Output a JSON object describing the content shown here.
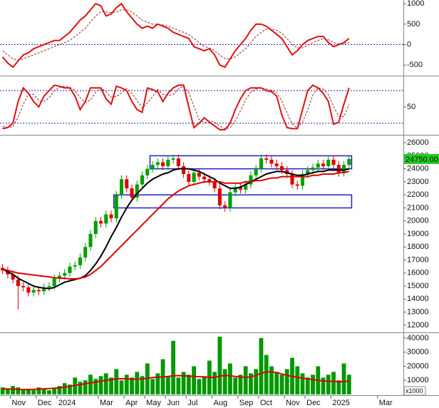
{
  "chart_data": [
    {
      "type": "line",
      "ylim": [
        -740,
        1090
      ],
      "yticks": [
        -500,
        0,
        500,
        1000
      ],
      "reference_line": 0,
      "series": [
        {
          "color": "#e01010",
          "values": [
            -300,
            -450,
            -550,
            -400,
            -250,
            -200,
            -100,
            -50,
            0,
            50,
            100,
            100,
            200,
            300,
            450,
            600,
            700,
            850,
            1000,
            950,
            700,
            750,
            900,
            1000,
            800,
            650,
            500,
            400,
            450,
            400,
            500,
            450,
            400,
            300,
            250,
            200,
            150,
            -50,
            -100,
            -150,
            -100,
            -250,
            -500,
            -550,
            -350,
            -150,
            0,
            150,
            350,
            500,
            500,
            450,
            350,
            250,
            150,
            -50,
            -250,
            -150,
            0,
            100,
            150,
            200,
            200,
            50,
            -50,
            0,
            50,
            150,
            null,
            null,
            null,
            null,
            null,
            null,
            null,
            null,
            null,
            null
          ]
        },
        {
          "color": "#a02828",
          "dashed": true,
          "values": [
            -150,
            -250,
            -350,
            -380,
            -350,
            -300,
            -250,
            -200,
            -150,
            -100,
            -50,
            0,
            50,
            100,
            200,
            300,
            400,
            550,
            700,
            800,
            800,
            780,
            800,
            850,
            850,
            800,
            700,
            600,
            550,
            500,
            500,
            480,
            450,
            400,
            350,
            300,
            250,
            150,
            50,
            -50,
            -80,
            -150,
            -250,
            -350,
            -350,
            -300,
            -200,
            -100,
            50,
            200,
            300,
            380,
            380,
            350,
            280,
            150,
            0,
            -80,
            -80,
            -20,
            50,
            100,
            150,
            120,
            50,
            20,
            20,
            60,
            null,
            null,
            null,
            null,
            null,
            null,
            null,
            null,
            null,
            null
          ]
        }
      ]
    },
    {
      "type": "line",
      "ylim": [
        0,
        105
      ],
      "yticks": [
        50
      ],
      "levels": [
        20,
        80
      ],
      "series": [
        {
          "color": "#e01010",
          "values": [
            10,
            12,
            20,
            60,
            85,
            75,
            60,
            50,
            70,
            80,
            90,
            88,
            85,
            85,
            70,
            45,
            60,
            85,
            85,
            85,
            65,
            55,
            88,
            85,
            80,
            60,
            45,
            40,
            85,
            82,
            78,
            60,
            75,
            85,
            90,
            90,
            50,
            12,
            20,
            30,
            22,
            15,
            8,
            8,
            20,
            45,
            65,
            80,
            85,
            85,
            85,
            80,
            78,
            70,
            35,
            12,
            10,
            10,
            45,
            80,
            90,
            85,
            75,
            60,
            18,
            22,
            55,
            85,
            null,
            null,
            null,
            null,
            null,
            null,
            null,
            null,
            null,
            null
          ]
        },
        {
          "color": "#a02828",
          "dashed": true,
          "values": [
            14,
            12,
            14,
            31,
            55,
            73,
            73,
            62,
            60,
            67,
            80,
            86,
            88,
            86,
            80,
            67,
            58,
            63,
            77,
            85,
            78,
            68,
            69,
            76,
            84,
            75,
            62,
            48,
            57,
            69,
            82,
            73,
            71,
            73,
            83,
            88,
            77,
            51,
            27,
            21,
            24,
            22,
            15,
            10,
            12,
            24,
            43,
            63,
            77,
            83,
            85,
            83,
            81,
            76,
            61,
            39,
            19,
            11,
            22,
            45,
            72,
            85,
            83,
            73,
            51,
            33,
            32,
            54,
            null,
            null,
            null,
            null,
            null,
            null,
            null,
            null,
            null,
            null
          ]
        }
      ]
    },
    {
      "type": "candlestick",
      "ylim": [
        11500,
        26500
      ],
      "yticks": [
        12000,
        13000,
        14000,
        15000,
        16000,
        17000,
        18000,
        19000,
        20000,
        21000,
        22000,
        23000,
        24000,
        25000,
        26000
      ],
      "up_color": "#00a000",
      "down_color": "#e00000",
      "zone_color": "#1f1fd0",
      "open": [
        16400,
        16200,
        15900,
        15500,
        15000,
        14900,
        14500,
        14700,
        14600,
        14900,
        15000,
        15600,
        15800,
        16000,
        16500,
        16600,
        17200,
        18000,
        19000,
        20000,
        19800,
        20500,
        20200,
        22000,
        23200,
        22500,
        21800,
        22800,
        23500,
        24000,
        24300,
        24500,
        24200,
        24700,
        24800,
        24200,
        23600,
        23000,
        23700,
        23400,
        23200,
        23000,
        22500,
        21200,
        21000,
        22200,
        22600,
        22400,
        22800,
        23500,
        24000,
        24800,
        24700,
        24400,
        24200,
        23900,
        23600,
        22800,
        22700,
        23600,
        23900,
        24100,
        24400,
        24200,
        24700,
        24300,
        23700,
        24300,
        null,
        null,
        null,
        null,
        null,
        null,
        null,
        null,
        null,
        null
      ],
      "high": [
        16700,
        16500,
        16200,
        15800,
        15300,
        15200,
        15000,
        15000,
        15200,
        15300,
        15900,
        16100,
        16300,
        16800,
        16900,
        17500,
        18300,
        19300,
        20300,
        20300,
        20800,
        20800,
        22300,
        23500,
        23500,
        22800,
        23100,
        23800,
        24300,
        24600,
        24800,
        24800,
        25000,
        25100,
        25100,
        24500,
        23900,
        24000,
        24000,
        23700,
        23500,
        23300,
        22800,
        21500,
        22500,
        22900,
        22900,
        23100,
        23800,
        24300,
        25100,
        25100,
        25000,
        24700,
        24500,
        24200,
        23900,
        23100,
        23900,
        24200,
        24400,
        24700,
        24700,
        25000,
        25000,
        24600,
        24600,
        25050,
        null,
        null,
        null,
        null,
        null,
        null,
        null,
        null,
        null,
        null
      ],
      "low": [
        15900,
        15600,
        15200,
        13200,
        14600,
        14200,
        14200,
        14300,
        14300,
        14600,
        14700,
        15300,
        15500,
        15700,
        16200,
        16300,
        16900,
        17700,
        18700,
        19500,
        19500,
        19900,
        19900,
        21700,
        22200,
        21500,
        21500,
        22500,
        23200,
        23700,
        24000,
        23900,
        23900,
        24400,
        23900,
        23300,
        22700,
        22700,
        23100,
        22900,
        22700,
        22200,
        20900,
        20700,
        20700,
        21900,
        22100,
        22100,
        22500,
        23200,
        23700,
        24400,
        24100,
        23900,
        23600,
        23300,
        22500,
        22400,
        22400,
        23300,
        23600,
        23800,
        23900,
        23900,
        24000,
        23400,
        23400,
        24000,
        null,
        null,
        null,
        null,
        null,
        null,
        null,
        null,
        null,
        null
      ],
      "close": [
        16200,
        15900,
        15500,
        15000,
        14900,
        14500,
        14700,
        14600,
        14900,
        15000,
        15600,
        15800,
        16000,
        16500,
        16600,
        17200,
        18000,
        19000,
        20000,
        19800,
        20500,
        20200,
        22000,
        23200,
        22500,
        21800,
        22800,
        23500,
        24000,
        24300,
        24500,
        24200,
        24700,
        24800,
        24200,
        23600,
        23000,
        23700,
        23400,
        23200,
        23000,
        22500,
        21200,
        21000,
        22200,
        22600,
        22400,
        22800,
        23500,
        24000,
        24800,
        24700,
        24400,
        24200,
        23900,
        23600,
        22800,
        22700,
        23600,
        23900,
        24100,
        24400,
        24200,
        24700,
        24300,
        23700,
        24300,
        24750,
        null,
        null,
        null,
        null,
        null,
        null,
        null,
        null,
        null,
        null
      ],
      "last_value_label": "24750.00",
      "zones": [
        {
          "start": 22,
          "end": 67,
          "low": 21000,
          "high": 22000
        },
        {
          "start": 29,
          "end": 67,
          "low": 24000,
          "high": 25000
        }
      ],
      "series": [
        {
          "color": "#000000",
          "values": [
            16300,
            16100,
            15900,
            15600,
            15400,
            15200,
            15000,
            14900,
            14850,
            14800,
            14900,
            15100,
            15300,
            15400,
            15500,
            15600,
            15800,
            16200,
            16700,
            17300,
            18000,
            18800,
            19500,
            20300,
            21000,
            21600,
            22100,
            22500,
            22900,
            23200,
            23400,
            23600,
            23700,
            23900,
            24000,
            24000,
            24000,
            23900,
            23800,
            23600,
            23400,
            23200,
            22900,
            22700,
            22500,
            22500,
            22600,
            22800,
            23000,
            23200,
            23400,
            23600,
            23700,
            23800,
            23800,
            23700,
            23600,
            23500,
            23500,
            23600,
            23700,
            23800,
            23800,
            23900,
            23900,
            23900,
            23900,
            24000,
            null,
            null,
            null,
            null,
            null,
            null,
            null,
            null,
            null,
            null
          ]
        },
        {
          "color": "#e00000",
          "values": [
            16300,
            16200,
            16100,
            16000,
            15950,
            15900,
            15850,
            15800,
            15750,
            15700,
            15650,
            15600,
            15600,
            15550,
            15550,
            15600,
            15700,
            15900,
            16200,
            16500,
            16900,
            17300,
            17700,
            18100,
            18500,
            18900,
            19300,
            19700,
            20100,
            20500,
            20900,
            21300,
            21700,
            22000,
            22300,
            22500,
            22700,
            22800,
            22900,
            23000,
            23000,
            23000,
            23000,
            22900,
            22900,
            22900,
            22900,
            23000,
            23000,
            23100,
            23100,
            23200,
            23300,
            23300,
            23400,
            23400,
            23400,
            23400,
            23400,
            23400,
            23500,
            23500,
            23600,
            23600,
            23600,
            23700,
            23700,
            23800,
            null,
            null,
            null,
            null,
            null,
            null,
            null,
            null,
            null,
            null
          ]
        }
      ]
    },
    {
      "type": "bar",
      "ylim": [
        0,
        43000
      ],
      "yticks": [
        10000,
        20000,
        30000,
        40000
      ],
      "unit_label": "x1000",
      "color": "#009900",
      "categories": [
        null,
        null,
        "Nov",
        null,
        null,
        null,
        null,
        "Dec",
        null,
        null,
        null,
        "2024",
        null,
        null,
        null,
        null,
        null,
        null,
        null,
        "Mar",
        null,
        null,
        null,
        null,
        "Apr",
        null,
        null,
        null,
        "May",
        null,
        null,
        null,
        "Jun",
        null,
        null,
        null,
        "Jul",
        null,
        null,
        null,
        null,
        "Aug",
        null,
        null,
        null,
        null,
        "Sep",
        null,
        null,
        null,
        "Oct",
        null,
        null,
        null,
        null,
        "Nov",
        null,
        null,
        null,
        "Dec",
        null,
        null,
        null,
        null,
        "2025",
        null,
        null,
        null,
        null,
        null,
        null,
        null,
        null,
        "Mar",
        null,
        null,
        null,
        null
      ],
      "values": [
        5000,
        4000,
        6000,
        5000,
        3000,
        4000,
        3000,
        5000,
        4000,
        3000,
        4000,
        6000,
        8000,
        7000,
        12000,
        9000,
        10000,
        14000,
        11000,
        13000,
        15000,
        12000,
        18000,
        10000,
        14000,
        12000,
        16000,
        13000,
        22000,
        11000,
        15000,
        25000,
        13000,
        38000,
        12000,
        16000,
        14000,
        20000,
        11000,
        13000,
        24000,
        16000,
        41000,
        18000,
        22000,
        12000,
        14000,
        20000,
        15000,
        18000,
        40000,
        28000,
        20000,
        16000,
        14000,
        18000,
        26000,
        20000,
        15000,
        12000,
        14000,
        20000,
        12000,
        14000,
        16000,
        10000,
        22000,
        14000,
        null,
        null,
        null,
        null,
        null,
        null,
        null,
        null,
        null,
        null
      ],
      "series": [
        {
          "color": "#e00000",
          "values": [
            4000,
            3900,
            3800,
            3600,
            3500,
            3500,
            3600,
            3800,
            4000,
            4200,
            4400,
            4600,
            5200,
            5800,
            6400,
            7000,
            7600,
            8200,
            8800,
            9400,
            10000,
            10500,
            11000,
            11200,
            11000,
            10800,
            10800,
            11000,
            11500,
            12000,
            12200,
            12500,
            12800,
            13200,
            13400,
            13200,
            13000,
            12800,
            12600,
            12400,
            12200,
            12000,
            13000,
            13500,
            13200,
            12800,
            12400,
            12000,
            12500,
            13500,
            15000,
            16000,
            16000,
            15500,
            14500,
            13500,
            12800,
            12200,
            11500,
            11000,
            10500,
            10000,
            9600,
            9400,
            9200,
            9000,
            9200,
            9400,
            null,
            null,
            null,
            null,
            null,
            null,
            null,
            null,
            null,
            null
          ]
        }
      ]
    }
  ]
}
